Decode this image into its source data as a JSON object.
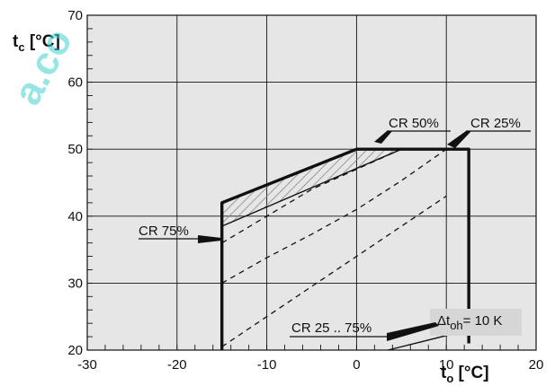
{
  "chart_data": {
    "type": "line",
    "title": "",
    "xlabel": {
      "main": "t",
      "sub": "o",
      "unit": " [°C]"
    },
    "ylabel": {
      "main": "t",
      "sub": "c",
      "unit": " [°C]"
    },
    "xlim": [
      -30,
      20
    ],
    "ylim": [
      20,
      70
    ],
    "xticks": [
      -30,
      -20,
      -10,
      0,
      10,
      20
    ],
    "yticks": [
      20,
      30,
      40,
      50,
      60,
      70
    ],
    "grid": true,
    "colors": {
      "frame": "#111111",
      "grid": "#111111",
      "background": "#e6e6e6",
      "hatch": "#888888",
      "watermark": "#3fd2cf"
    },
    "series": [
      {
        "name": "CR 25 .. 75%",
        "style": "thick-solid",
        "x": [
          -15,
          -15,
          -15,
          0,
          12.5,
          12.5,
          12.5
        ],
        "y": [
          20,
          30,
          42,
          50,
          50,
          27,
          21
        ]
      },
      {
        "name": "CR 75%",
        "style": "solid",
        "x": [
          -15,
          5
        ],
        "y": [
          38.5,
          50
        ]
      },
      {
        "name": "CR 50%",
        "style": "dashed",
        "x": [
          -15,
          -10,
          -5,
          0,
          5
        ],
        "y": [
          36,
          40,
          44,
          47,
          50
        ]
      },
      {
        "name": "CR 25%",
        "style": "dashed",
        "x": [
          -15,
          -10,
          -5,
          0,
          5,
          10
        ],
        "y": [
          30,
          33.8,
          37.3,
          41,
          45.3,
          50
        ]
      },
      {
        "name": "",
        "style": "dashed",
        "x": [
          -15,
          -10,
          -5,
          0,
          5,
          10
        ],
        "y": [
          20.5,
          25,
          29.5,
          34,
          38.5,
          43
        ]
      },
      {
        "name": "Δt oh = 10 K",
        "style": "solid",
        "x": [
          3.5,
          12.5
        ],
        "y": [
          20,
          23
        ]
      }
    ],
    "hatched_region": {
      "x": [
        -15,
        -15,
        0,
        5
      ],
      "y": [
        38.5,
        42,
        50,
        50
      ]
    },
    "annotations": [
      {
        "key": "cr50",
        "text": "CR 50%"
      },
      {
        "key": "cr25",
        "text": "CR 25%"
      },
      {
        "key": "cr75",
        "text": "CR 75%"
      },
      {
        "key": "cr2575",
        "text": "CR 25 .. 75%"
      },
      {
        "key": "dtoh",
        "prefix": "Δt",
        "sub": "oh",
        "suffix": "= 10 K"
      }
    ]
  },
  "watermark": {
    "text": "a.co"
  }
}
